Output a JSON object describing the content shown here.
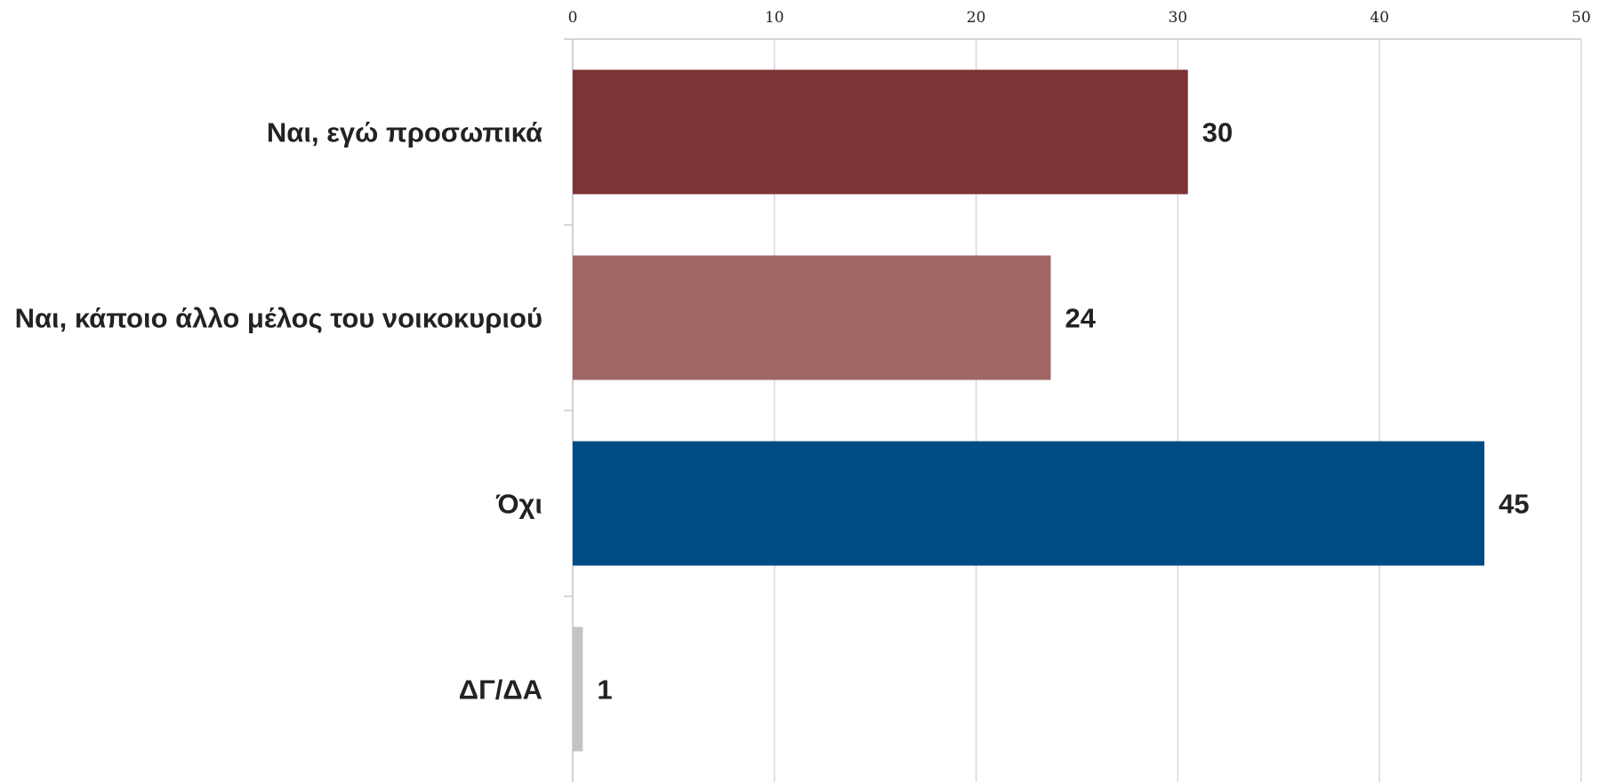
{
  "chart_data": {
    "type": "bar",
    "orientation": "horizontal",
    "categories": [
      "Ναι, εγώ προσωπικά",
      "Ναι, κάποιο άλλο μέλος του νοικοκυριού",
      "Όχι",
      "ΔΓ/ΔΑ"
    ],
    "values": [
      30.5,
      23.7,
      45.2,
      0.5
    ],
    "data_labels": [
      "30",
      "24",
      "45",
      "1"
    ],
    "colors": [
      "#7e3335",
      "#9f6664",
      "#004c84",
      "#c3c3c3"
    ],
    "xlim": [
      0,
      50
    ],
    "x_ticks": [
      0,
      10,
      20,
      30,
      40,
      50
    ],
    "x_tick_labels": [
      "0",
      "10",
      "20",
      "30",
      "40",
      "50"
    ],
    "axis_position": "top",
    "grid": true,
    "title": "",
    "xlabel": "",
    "ylabel": ""
  }
}
